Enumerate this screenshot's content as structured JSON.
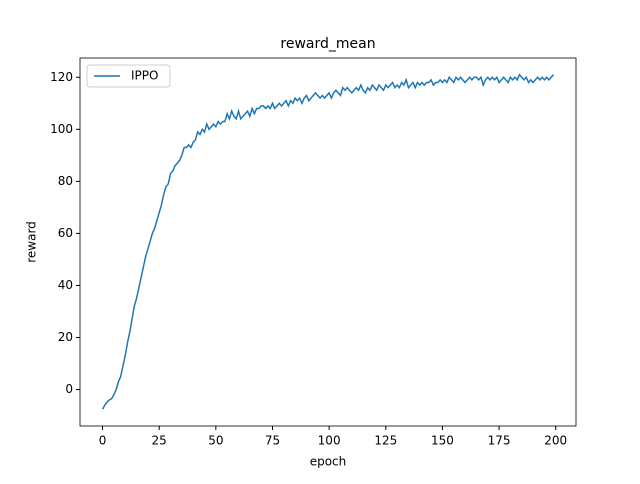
{
  "chart_data": {
    "type": "line",
    "title": "reward_mean",
    "x_label": "epoch",
    "y_label": "reward",
    "x": [
      0,
      1,
      2,
      3,
      4,
      5,
      6,
      7,
      8,
      9,
      10,
      11,
      12,
      13,
      14,
      15,
      16,
      17,
      18,
      19,
      20,
      21,
      22,
      23,
      24,
      25,
      26,
      27,
      28,
      29,
      30,
      31,
      32,
      33,
      34,
      35,
      36,
      37,
      38,
      39,
      40,
      41,
      42,
      43,
      44,
      45,
      46,
      47,
      48,
      49,
      50,
      51,
      52,
      53,
      54,
      55,
      56,
      57,
      58,
      59,
      60,
      61,
      62,
      63,
      64,
      65,
      66,
      67,
      68,
      69,
      70,
      71,
      72,
      73,
      74,
      75,
      76,
      77,
      78,
      79,
      80,
      81,
      82,
      83,
      84,
      85,
      86,
      87,
      88,
      89,
      90,
      91,
      92,
      93,
      94,
      95,
      96,
      97,
      98,
      99,
      100,
      101,
      102,
      103,
      104,
      105,
      106,
      107,
      108,
      109,
      110,
      111,
      112,
      113,
      114,
      115,
      116,
      117,
      118,
      119,
      120,
      121,
      122,
      123,
      124,
      125,
      126,
      127,
      128,
      129,
      130,
      131,
      132,
      133,
      134,
      135,
      136,
      137,
      138,
      139,
      140,
      141,
      142,
      143,
      144,
      145,
      146,
      147,
      148,
      149,
      150,
      151,
      152,
      153,
      154,
      155,
      156,
      157,
      158,
      159,
      160,
      161,
      162,
      163,
      164,
      165,
      166,
      167,
      168,
      169,
      170,
      171,
      172,
      173,
      174,
      175,
      176,
      177,
      178,
      179,
      180,
      181,
      182,
      183,
      184,
      185,
      186,
      187,
      188,
      189,
      190,
      191,
      192,
      193,
      194,
      195,
      196,
      197,
      198,
      199
    ],
    "series": [
      {
        "name": "IPPO",
        "color": "#1f77b4",
        "values": [
          -7.5,
          -6,
          -4.8,
          -4,
          -3.5,
          -2,
          0,
          3,
          5,
          9,
          13,
          18,
          22,
          27,
          32,
          35,
          39,
          43,
          47,
          51,
          54,
          57,
          60,
          62,
          65,
          68,
          71,
          75,
          78,
          79,
          83,
          84,
          86,
          87,
          88,
          90,
          93,
          93,
          94,
          93,
          95,
          96,
          99,
          98,
          100,
          99,
          102,
          100,
          101,
          102,
          101,
          103,
          102,
          103,
          103,
          106,
          104,
          107,
          105,
          104,
          107,
          104,
          105,
          106,
          107,
          105,
          108,
          106,
          108,
          108,
          109,
          109,
          108,
          109,
          108,
          110,
          108,
          109,
          110,
          109,
          110,
          111,
          109,
          111,
          110,
          112,
          111,
          112,
          110,
          112,
          113,
          111,
          112,
          113,
          114,
          113,
          112,
          113,
          112,
          113,
          114,
          112,
          114,
          115,
          114,
          113,
          116,
          115,
          116,
          115,
          114,
          115,
          116,
          115,
          117,
          115,
          114,
          116,
          115,
          117,
          116,
          115,
          117,
          116,
          115,
          117,
          116,
          117,
          118,
          116,
          117,
          116,
          118,
          117,
          119,
          116,
          117,
          118,
          116,
          118,
          117,
          118,
          117,
          118,
          118,
          119,
          117,
          118,
          118,
          119,
          118,
          119,
          118,
          120,
          119,
          118,
          120,
          119,
          120,
          119,
          118,
          119,
          120,
          119,
          120,
          120,
          119,
          120,
          117,
          119,
          120,
          119,
          120,
          119,
          120,
          118,
          119,
          120,
          119,
          118,
          120,
          119,
          120,
          119,
          121,
          120,
          119,
          120,
          118,
          119,
          118,
          119,
          120,
          119,
          120,
          119,
          120,
          119,
          120,
          121
        ]
      }
    ],
    "xlim": [
      -9.95,
      208.95
    ],
    "ylim": [
      -14,
      127.4
    ],
    "xticks": [
      0,
      25,
      50,
      75,
      100,
      125,
      150,
      175,
      200
    ],
    "yticks": [
      0,
      20,
      40,
      60,
      80,
      100,
      120
    ],
    "legend": "upper left"
  }
}
